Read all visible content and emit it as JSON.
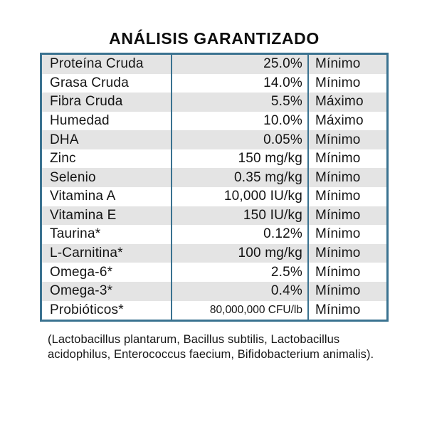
{
  "title": "ANÁLISIS GARANTIZADO",
  "table": {
    "columns": [
      "nutrient",
      "value",
      "qualifier"
    ],
    "rows": [
      {
        "nutrient": "Proteína Cruda",
        "value": "25.0%",
        "qualifier": "Mínimo"
      },
      {
        "nutrient": "Grasa Cruda",
        "value": "14.0%",
        "qualifier": "Mínimo"
      },
      {
        "nutrient": "Fibra Cruda",
        "value": "5.5%",
        "qualifier": "Máximo"
      },
      {
        "nutrient": "Humedad",
        "value": "10.0%",
        "qualifier": "Máximo"
      },
      {
        "nutrient": "DHA",
        "value": "0.05%",
        "qualifier": "Mínimo"
      },
      {
        "nutrient": "Zinc",
        "value": "150 mg/kg",
        "qualifier": "Mínimo"
      },
      {
        "nutrient": "Selenio",
        "value": "0.35 mg/kg",
        "qualifier": "Mínimo"
      },
      {
        "nutrient": "Vitamina A",
        "value": "10,000 IU/kg",
        "qualifier": "Mínimo"
      },
      {
        "nutrient": "Vitamina E",
        "value": "150 IU/kg",
        "qualifier": "Mínimo"
      },
      {
        "nutrient": "Taurina*",
        "value": "0.12%",
        "qualifier": "Mínimo"
      },
      {
        "nutrient": "L-Carnitina*",
        "value": "100 mg/kg",
        "qualifier": "Mínimo"
      },
      {
        "nutrient": "Omega-6*",
        "value": "2.5%",
        "qualifier": "Mínimo"
      },
      {
        "nutrient": "Omega-3*",
        "value": "0.4%",
        "qualifier": "Mínimo"
      },
      {
        "nutrient": "Probióticos*",
        "value": "80,000,000 CFU/lb",
        "qualifier": "Mínimo"
      }
    ]
  },
  "footnote": "(Lactobacillus plantarum, Bacillus subtilis, Lactobacillus acidophilus, Enterococcus faecium, Bifidobacterium animalis).",
  "colors": {
    "border": "#3a7290",
    "stripe": "#e4e4e4",
    "text": "#141414"
  }
}
